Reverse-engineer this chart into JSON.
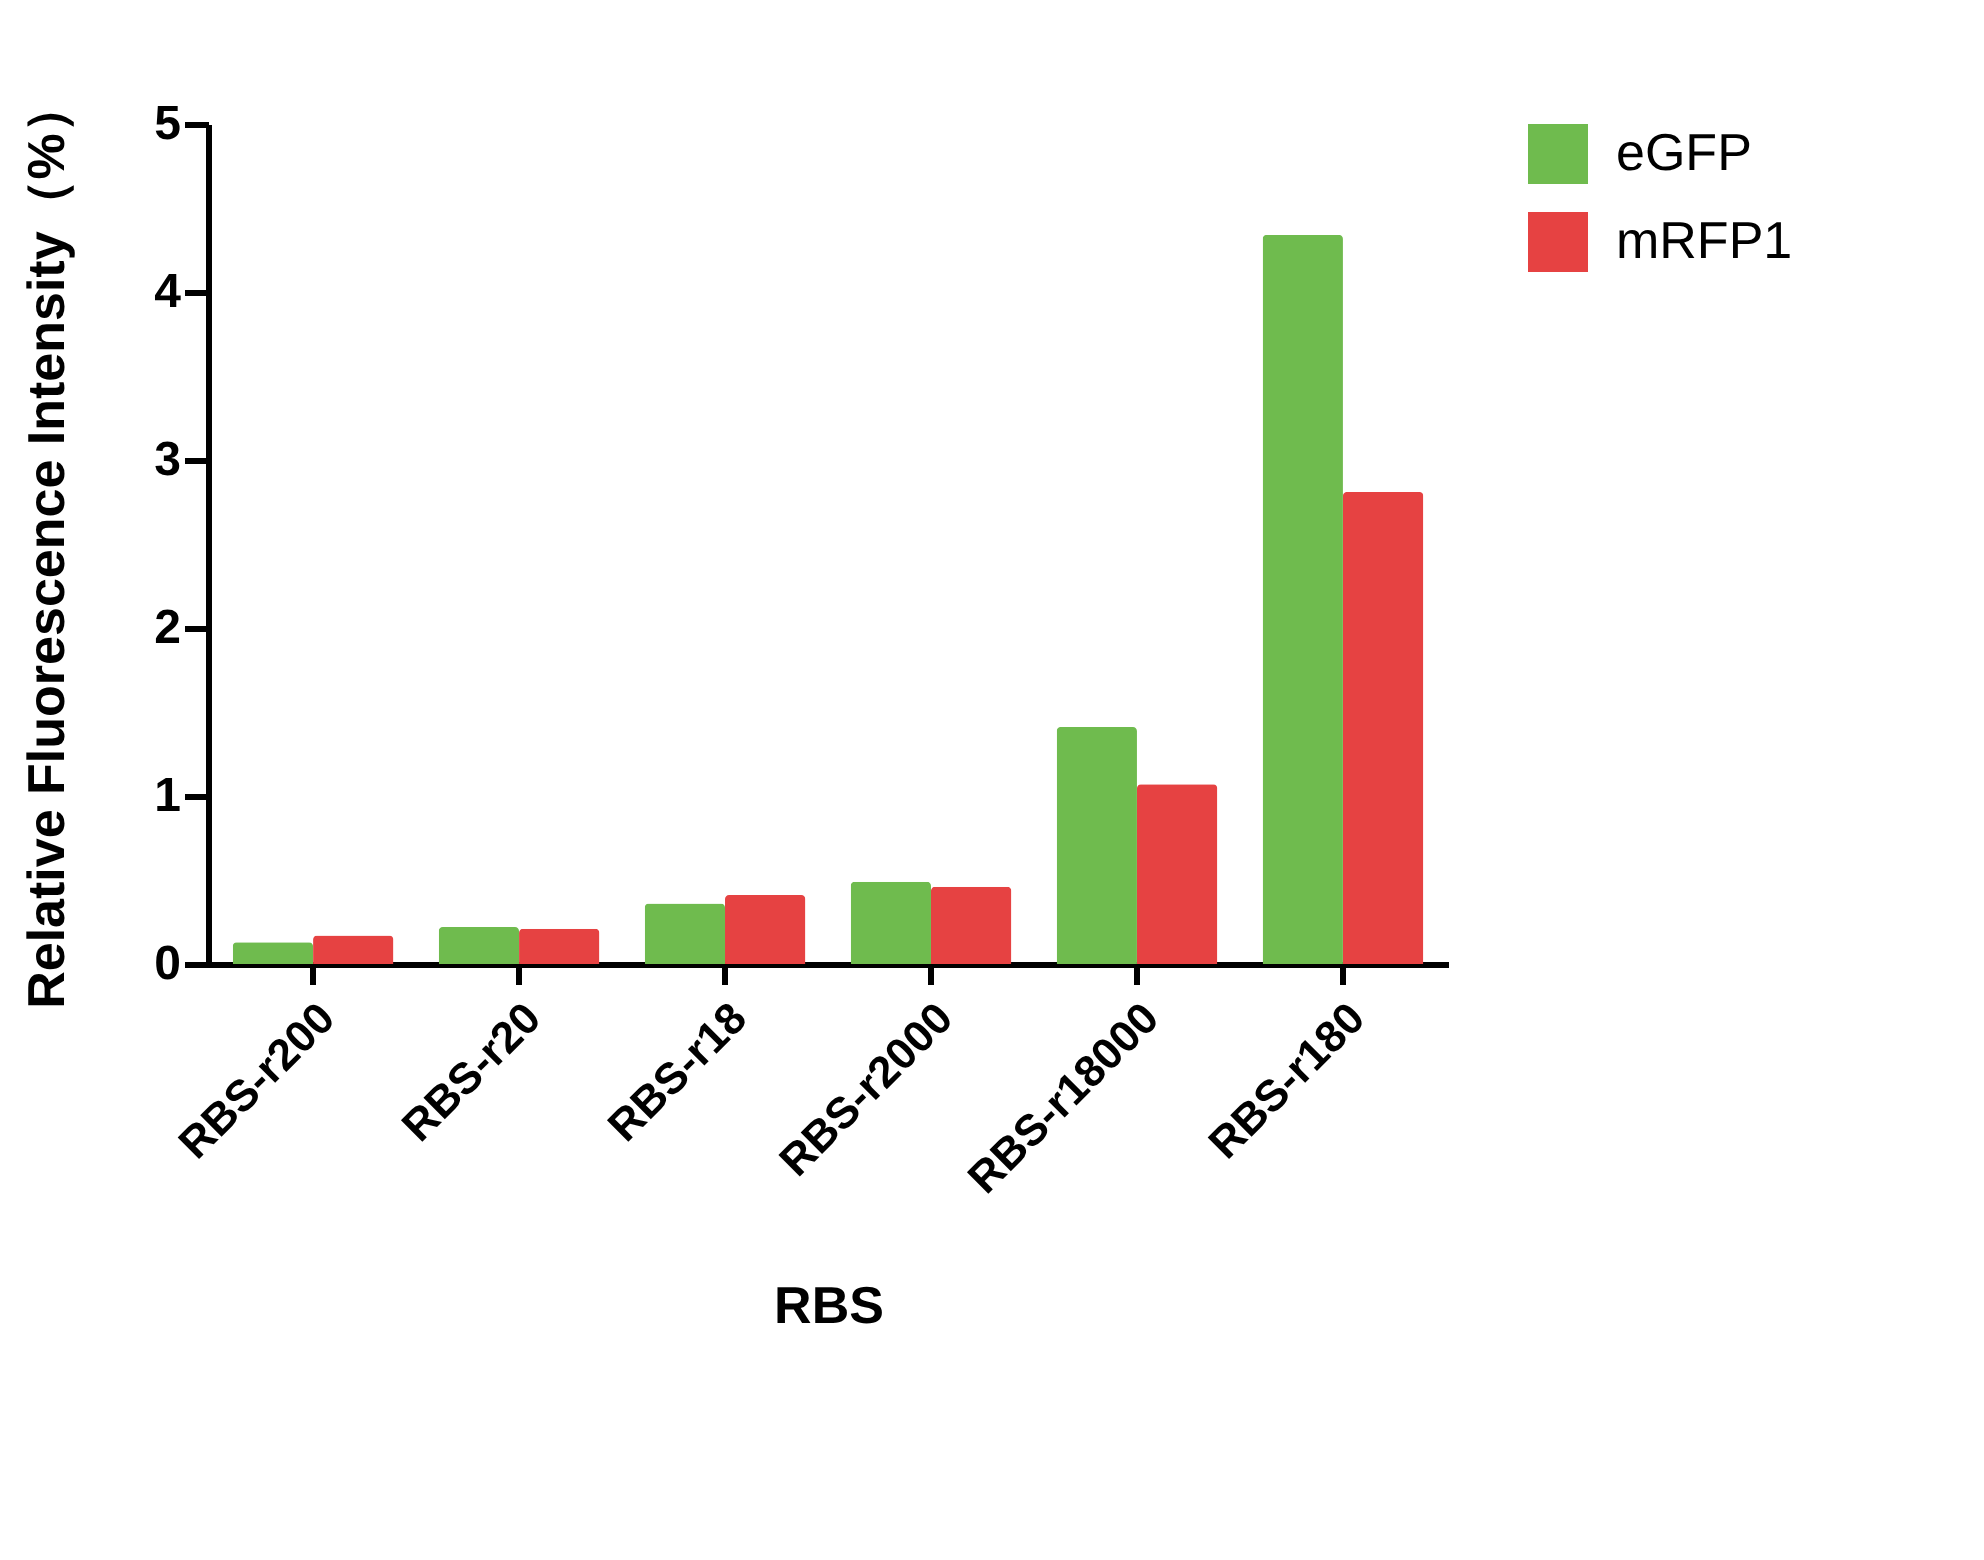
{
  "chart_data": {
    "type": "bar",
    "xlabel": "RBS",
    "ylabel": "Relative Fluorescence Intensity（%）",
    "categories": [
      "RBS-r200",
      "RBS-r20",
      "RBS-r18",
      "RBS-r2000",
      "RBS-r18000",
      "RBS-r180"
    ],
    "series": [
      {
        "name": "eGFP",
        "color": "#6fbb4e",
        "values": [
          0.13,
          0.22,
          0.36,
          0.49,
          1.41,
          4.34
        ]
      },
      {
        "name": "mRFP1",
        "color": "#e64242",
        "values": [
          0.17,
          0.21,
          0.41,
          0.46,
          1.07,
          2.81
        ]
      }
    ],
    "ylim": [
      0,
      5
    ],
    "yticks": [
      0,
      1,
      2,
      3,
      4,
      5
    ],
    "grid": false,
    "legend": "top right"
  }
}
